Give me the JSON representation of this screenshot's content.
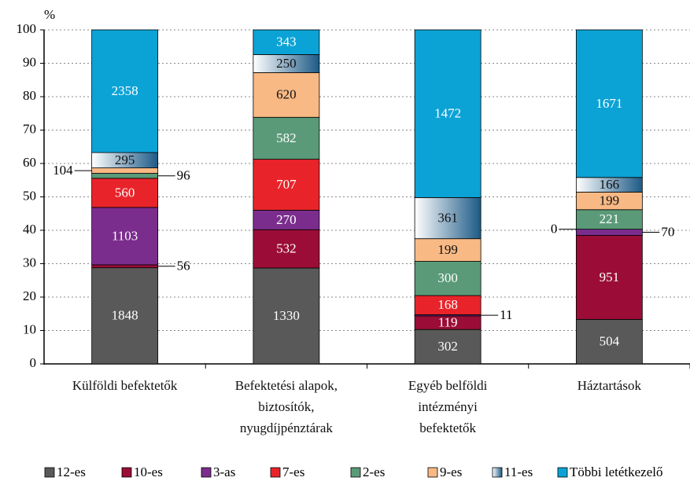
{
  "chart_data": {
    "type": "bar",
    "stacking": "percent",
    "y_label": "%",
    "categories": [
      "Külföldi befektetők",
      "Befektetési alapok,\nbiztosítók,\nnyugdíjpénztárak",
      "Egyéb belföldi\nintézményi\nbefektetők",
      "Háztartások"
    ],
    "series": [
      {
        "name": "12-es",
        "color": "#595959",
        "values": [
          1848,
          1330,
          302,
          504
        ]
      },
      {
        "name": "10-es",
        "color": "#9b0d37",
        "values": [
          56,
          532,
          119,
          951
        ]
      },
      {
        "name": "3-as",
        "color": "#7b2d8e",
        "values": [
          1103,
          270,
          11,
          70
        ]
      },
      {
        "name": "7-es",
        "color": "#e8242a",
        "values": [
          560,
          707,
          168,
          0
        ]
      },
      {
        "name": "2-es",
        "color": "#5a9a78",
        "values": [
          96,
          582,
          300,
          221
        ]
      },
      {
        "name": "9-es",
        "color": "#f8b985",
        "values": [
          104,
          620,
          199,
          199
        ]
      },
      {
        "name": "11-es",
        "color": "#1d5a86",
        "gradient": true,
        "values": [
          295,
          250,
          361,
          166
        ]
      },
      {
        "name": "Többi letétkezelő",
        "color": "#0ba3d6",
        "values": [
          2358,
          343,
          1472,
          1671
        ]
      }
    ],
    "ylim": [
      0,
      100
    ],
    "yticks": [
      0,
      10,
      20,
      30,
      40,
      50,
      60,
      70,
      80,
      90,
      100
    ],
    "grid": true
  }
}
